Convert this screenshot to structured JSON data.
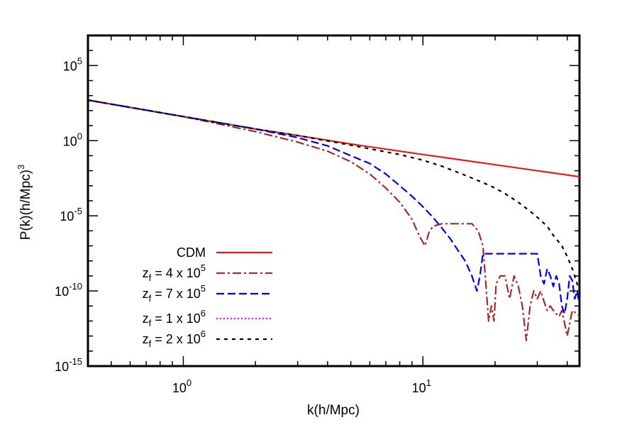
{
  "chart_data": {
    "type": "line",
    "xlabel": "k(h/Mpc)",
    "ylabel": {
      "base": "P(k)(h/Mpc)",
      "exp": "3"
    },
    "x_scale": "log",
    "y_scale": "log",
    "xlim": [
      0.4,
      45
    ],
    "ylim": [
      1e-15,
      10000000.0
    ],
    "grid": false,
    "legend_position": "bottom-left",
    "x_ticks": [
      {
        "value": 1,
        "base": "10",
        "exp": "0"
      },
      {
        "value": 10,
        "base": "10",
        "exp": "1"
      }
    ],
    "y_ticks": [
      {
        "value": 100000.0,
        "base": "10",
        "exp": "5"
      },
      {
        "value": 1,
        "base": "10",
        "exp": "0"
      },
      {
        "value": 1e-05,
        "base": "10",
        "exp": "-5"
      },
      {
        "value": 1e-10,
        "base": "10",
        "exp": "-10"
      },
      {
        "value": 1e-15,
        "base": "10",
        "exp": "-15"
      }
    ],
    "series": [
      {
        "label": {
          "text": "CDM"
        },
        "color": "#e41a1c",
        "dash": "solid",
        "x": [
          0.4,
          1,
          2,
          3,
          5,
          10,
          20,
          45
        ],
        "y": [
          500,
          40,
          6,
          2.2,
          0.6,
          0.12,
          0.025,
          0.004
        ]
      },
      {
        "label": {
          "pre": "z",
          "sub": "f",
          "mid": " = 4 x 10",
          "exp": "5"
        },
        "color": "#a52a2a",
        "dash": "dash-dot",
        "x": [
          0.4,
          1,
          2,
          3,
          4,
          5,
          6,
          7,
          8,
          9,
          9.7,
          10.2,
          10.6,
          11,
          12,
          14,
          16,
          17,
          17.8,
          18.3,
          18.8,
          19.3,
          19.8,
          20.2,
          21,
          22,
          23,
          24,
          25,
          26,
          27,
          28,
          29,
          30,
          31,
          32,
          33,
          34,
          35,
          36,
          37,
          38,
          40,
          42,
          44,
          45
        ],
        "y": [
          500,
          40,
          4,
          0.8,
          0.2,
          0.04,
          0.006,
          0.0007,
          8e-05,
          6e-06,
          4e-07,
          1e-07,
          8e-07,
          2e-06,
          3e-06,
          3e-06,
          3e-06,
          1e-06,
          1e-07,
          3e-10,
          1e-12,
          1e-11,
          1e-12,
          3e-10,
          1e-09,
          1e-09,
          3e-11,
          1e-09,
          2e-10,
          1e-11,
          5e-14,
          1e-11,
          1e-10,
          3e-11,
          1e-10,
          2e-11,
          5e-12,
          1e-11,
          5e-12,
          3e-12,
          2e-12,
          5e-12,
          1e-13,
          5e-12,
          3e-12,
          2e-12
        ]
      },
      {
        "label": {
          "pre": "z",
          "sub": "f",
          "mid": " = 7 x 10",
          "exp": "5"
        },
        "color": "#0000ee",
        "dash": "dashed",
        "x": [
          0.4,
          1,
          2,
          3,
          4,
          5,
          6,
          7,
          8,
          9,
          10,
          11,
          12,
          13,
          14,
          15,
          16,
          16.8,
          17.3,
          17.8,
          18.2,
          19,
          21,
          24,
          27,
          30,
          31,
          32,
          33,
          34,
          35,
          36,
          37,
          38,
          39,
          40,
          41,
          42,
          43,
          44,
          45
        ],
        "y": [
          500,
          40,
          6,
          1.6,
          0.45,
          0.1,
          0.03,
          0.006,
          0.001,
          0.0002,
          4e-05,
          8e-06,
          1.5e-06,
          3e-07,
          5e-08,
          1e-08,
          1e-09,
          1e-10,
          1e-09,
          3e-08,
          3e-08,
          3e-08,
          3e-08,
          3e-08,
          3e-08,
          3e-08,
          1e-09,
          3e-10,
          3e-09,
          1e-09,
          2e-10,
          1e-09,
          3e-10,
          1e-11,
          3e-12,
          3e-11,
          1e-09,
          5e-10,
          3e-11,
          1e-10,
          1e-11
        ]
      },
      {
        "label": {
          "pre": "z",
          "sub": "f",
          "mid": " = 1 x 10",
          "exp": "6"
        },
        "color": "#ff00ff",
        "dash": "dotted",
        "x": [],
        "y": []
      },
      {
        "label": {
          "pre": "z",
          "sub": "f",
          "mid": " = 2 x 10",
          "exp": "6"
        },
        "color": "#000000",
        "dash": "short-dashed",
        "x": [
          0.4,
          1,
          2,
          3,
          5,
          8,
          10,
          12,
          15,
          18,
          20,
          22,
          25,
          28,
          30,
          33,
          35,
          38,
          40,
          42,
          44,
          45
        ],
        "y": [
          500,
          40,
          6,
          2.2,
          0.5,
          0.12,
          0.05,
          0.02,
          0.005,
          0.0015,
          0.0007,
          0.0003,
          8e-05,
          2e-05,
          8e-06,
          2e-06,
          5e-07,
          1e-07,
          2e-08,
          3e-09,
          3e-10,
          1e-10
        ]
      }
    ]
  }
}
